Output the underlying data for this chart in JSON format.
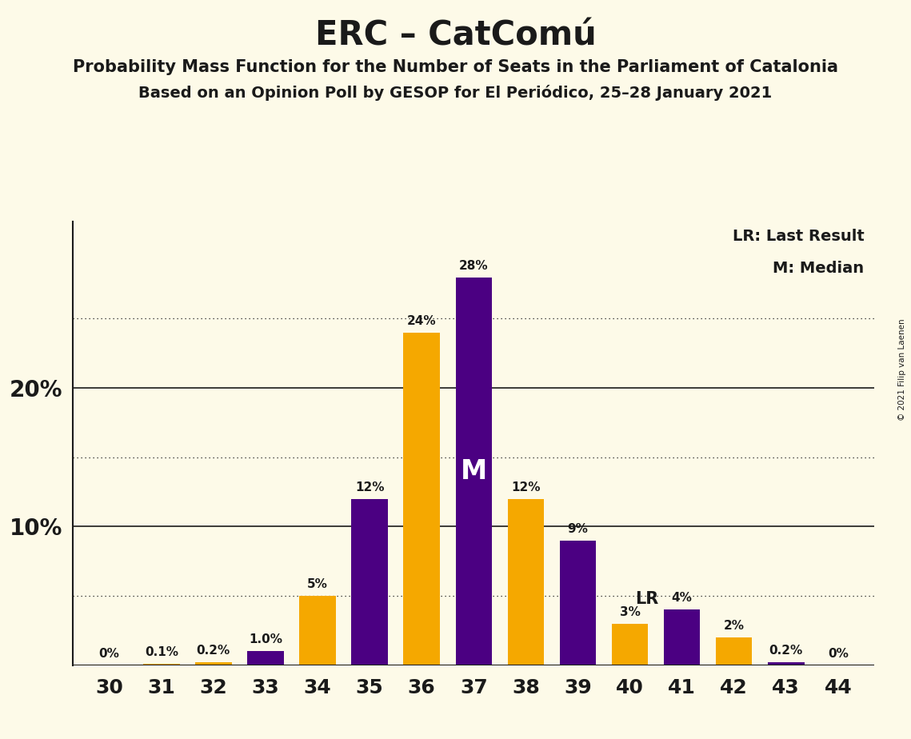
{
  "title": "ERC – CatComú",
  "subtitle1": "Probability Mass Function for the Number of Seats in the Parliament of Catalonia",
  "subtitle2": "Based on an Opinion Poll by GESOP for El Periódico, 25–28 January 2021",
  "copyright": "© 2021 Filip van Laenen",
  "legend_lr": "LR: Last Result",
  "legend_m": "M: Median",
  "seats": [
    30,
    31,
    32,
    33,
    34,
    35,
    36,
    37,
    38,
    39,
    40,
    41,
    42,
    43,
    44
  ],
  "values": [
    0.0,
    0.1,
    0.2,
    1.0,
    5.0,
    12.0,
    24.0,
    28.0,
    12.0,
    9.0,
    3.0,
    4.0,
    2.0,
    0.2,
    0.0
  ],
  "bar_colors": [
    "#F5A800",
    "#F5A800",
    "#F5A800",
    "#4B0082",
    "#F5A800",
    "#4B0082",
    "#F5A800",
    "#4B0082",
    "#F5A800",
    "#4B0082",
    "#F5A800",
    "#4B0082",
    "#F5A800",
    "#4B0082",
    "#F5A800"
  ],
  "bar_labels": [
    "0%",
    "0.1%",
    "0.2%",
    "1.0%",
    "5%",
    "12%",
    "24%",
    "28%",
    "12%",
    "9%",
    "3%",
    "4%",
    "2%",
    "0.2%",
    "0%"
  ],
  "median_seat": 37,
  "lr_seat": 40,
  "background_color": "#FDFAE8",
  "bar_width": 0.7,
  "ylim": [
    0,
    32
  ],
  "solid_lines": [
    10,
    20
  ],
  "dotted_lines": [
    5,
    15,
    25
  ],
  "orange_color": "#F5A800",
  "purple_color": "#4B0082",
  "text_color": "#1a1a1a",
  "axis_color": "#1a1a1a"
}
